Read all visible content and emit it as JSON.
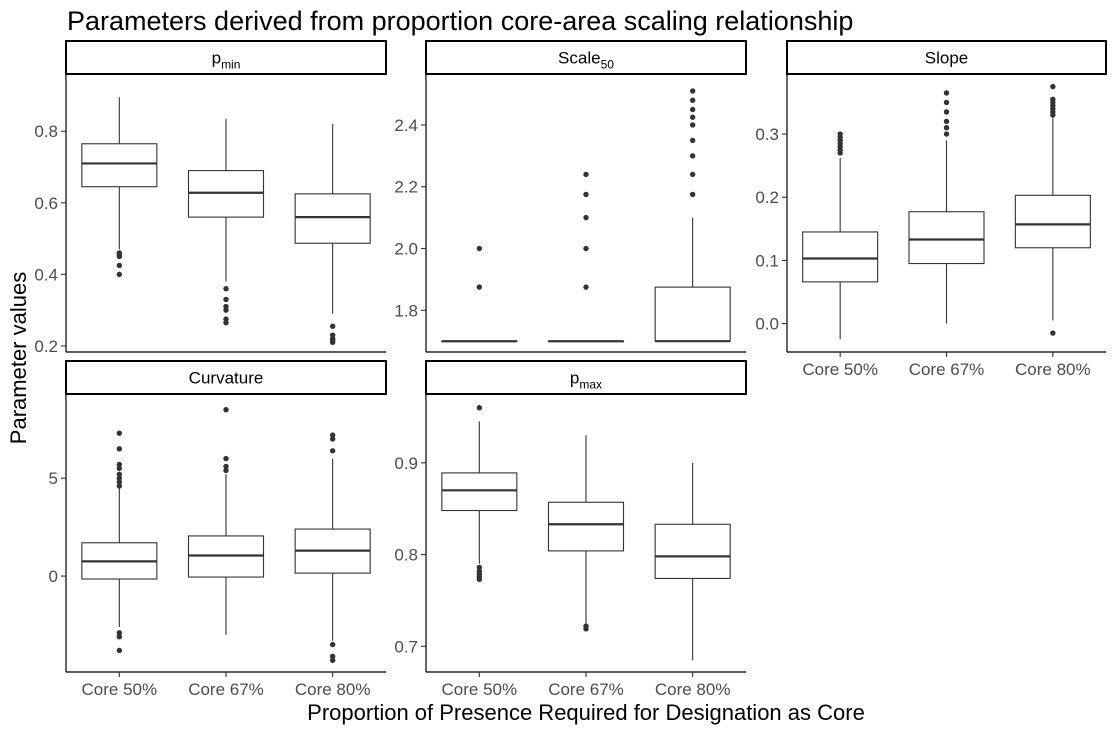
{
  "figure": {
    "title": "Parameters derived from proportion core-area scaling relationship",
    "xlabel": "Proportion of Presence Required for Designation as Core",
    "ylabel": "Parameter values"
  },
  "chart_data": [
    {
      "type": "box",
      "panel": "p_min",
      "strip_main": "p",
      "strip_sub": "min",
      "categories": [
        "Core 50%",
        "Core 67%",
        "Core 80%"
      ],
      "show_x_ticks": false,
      "yticks": [
        0.2,
        0.4,
        0.6,
        0.8
      ],
      "ytick_labels": [
        "0.2",
        "0.4",
        "0.6",
        "0.8"
      ],
      "ylim": [
        0.183,
        0.96
      ],
      "boxes": [
        {
          "lower_whisker": 0.47,
          "q1": 0.645,
          "median": 0.71,
          "q3": 0.765,
          "upper_whisker": 0.895,
          "outliers": [
            0.46,
            0.455,
            0.45,
            0.425,
            0.4
          ]
        },
        {
          "lower_whisker": 0.38,
          "q1": 0.56,
          "median": 0.628,
          "q3": 0.69,
          "upper_whisker": 0.835,
          "outliers": [
            0.36,
            0.33,
            0.31,
            0.3,
            0.275,
            0.265
          ]
        },
        {
          "lower_whisker": 0.29,
          "q1": 0.487,
          "median": 0.56,
          "q3": 0.625,
          "upper_whisker": 0.82,
          "outliers": [
            0.255,
            0.23,
            0.22,
            0.215,
            0.21
          ]
        }
      ]
    },
    {
      "type": "box",
      "panel": "Scale_50",
      "strip_main": "Scale",
      "strip_sub": "50",
      "categories": [
        "Core 50%",
        "Core 67%",
        "Core 80%"
      ],
      "show_x_ticks": false,
      "yticks": [
        1.8,
        2.0,
        2.2,
        2.4
      ],
      "ytick_labels": [
        "1.8",
        "2.0",
        "2.2",
        "2.4"
      ],
      "ylim": [
        1.665,
        2.565
      ],
      "boxes": [
        {
          "lower_whisker": 1.7,
          "q1": 1.7,
          "median": 1.7,
          "q3": 1.7,
          "upper_whisker": 1.7,
          "outliers": [
            1.875,
            2.0
          ]
        },
        {
          "lower_whisker": 1.7,
          "q1": 1.7,
          "median": 1.7,
          "q3": 1.7,
          "upper_whisker": 1.7,
          "outliers": [
            1.875,
            2.0,
            2.1,
            2.175,
            2.24
          ]
        },
        {
          "lower_whisker": 1.7,
          "q1": 1.7,
          "median": 1.7,
          "q3": 1.875,
          "upper_whisker": 2.1,
          "outliers": [
            2.175,
            2.24,
            2.3,
            2.35,
            2.4,
            2.425,
            2.45,
            2.48,
            2.51
          ]
        }
      ]
    },
    {
      "type": "box",
      "panel": "Slope",
      "strip_main": "Slope",
      "strip_sub": "",
      "categories": [
        "Core 50%",
        "Core 67%",
        "Core 80%"
      ],
      "show_x_ticks": true,
      "yticks": [
        0.0,
        0.1,
        0.2,
        0.3
      ],
      "ytick_labels": [
        "0.0",
        "0.1",
        "0.2",
        "0.3"
      ],
      "ylim": [
        -0.045,
        0.395
      ],
      "boxes": [
        {
          "lower_whisker": -0.025,
          "q1": 0.066,
          "median": 0.103,
          "q3": 0.145,
          "upper_whisker": 0.262,
          "outliers": [
            0.27,
            0.275,
            0.28,
            0.285,
            0.29,
            0.295,
            0.3
          ]
        },
        {
          "lower_whisker": 0.0,
          "q1": 0.095,
          "median": 0.133,
          "q3": 0.177,
          "upper_whisker": 0.29,
          "outliers": [
            0.3,
            0.31,
            0.32,
            0.335,
            0.35,
            0.365
          ]
        },
        {
          "lower_whisker": 0.005,
          "q1": 0.12,
          "median": 0.157,
          "q3": 0.203,
          "upper_whisker": 0.325,
          "outliers": [
            0.33,
            0.335,
            0.34,
            0.345,
            0.35,
            0.355,
            0.375,
            -0.015
          ]
        }
      ]
    },
    {
      "type": "box",
      "panel": "Curvature",
      "strip_main": "Curvature",
      "strip_sub": "",
      "categories": [
        "Core 50%",
        "Core 67%",
        "Core 80%"
      ],
      "show_x_ticks": true,
      "yticks": [
        0,
        5
      ],
      "ytick_labels": [
        "0",
        "5"
      ],
      "ylim": [
        -4.9,
        9.3
      ],
      "boxes": [
        {
          "lower_whisker": -2.6,
          "q1": -0.15,
          "median": 0.75,
          "q3": 1.7,
          "upper_whisker": 4.5,
          "outliers": [
            4.6,
            4.8,
            5.0,
            5.2,
            5.5,
            5.7,
            6.5,
            7.3,
            -2.9,
            -3.1,
            -3.8
          ]
        },
        {
          "lower_whisker": -3.0,
          "q1": -0.05,
          "median": 1.05,
          "q3": 2.05,
          "upper_whisker": 5.2,
          "outliers": [
            5.4,
            5.6,
            6.0,
            8.5
          ]
        },
        {
          "lower_whisker": -3.3,
          "q1": 0.15,
          "median": 1.3,
          "q3": 2.4,
          "upper_whisker": 6.0,
          "outliers": [
            6.4,
            7.0,
            7.2,
            -3.5,
            -4.1,
            -4.3
          ]
        }
      ]
    },
    {
      "type": "box",
      "panel": "p_max",
      "strip_main": "p",
      "strip_sub": "max",
      "categories": [
        "Core 50%",
        "Core 67%",
        "Core 80%"
      ],
      "show_x_ticks": true,
      "yticks": [
        0.7,
        0.8,
        0.9
      ],
      "ytick_labels": [
        "0.7",
        "0.8",
        "0.9"
      ],
      "ylim": [
        0.672,
        0.975
      ],
      "boxes": [
        {
          "lower_whisker": 0.79,
          "q1": 0.848,
          "median": 0.87,
          "q3": 0.889,
          "upper_whisker": 0.945,
          "outliers": [
            0.96,
            0.786,
            0.782,
            0.779,
            0.776,
            0.773
          ]
        },
        {
          "lower_whisker": 0.725,
          "q1": 0.804,
          "median": 0.833,
          "q3": 0.857,
          "upper_whisker": 0.93,
          "outliers": [
            0.722,
            0.719
          ]
        },
        {
          "lower_whisker": 0.685,
          "q1": 0.774,
          "median": 0.798,
          "q3": 0.833,
          "upper_whisker": 0.9,
          "outliers": []
        }
      ]
    }
  ]
}
